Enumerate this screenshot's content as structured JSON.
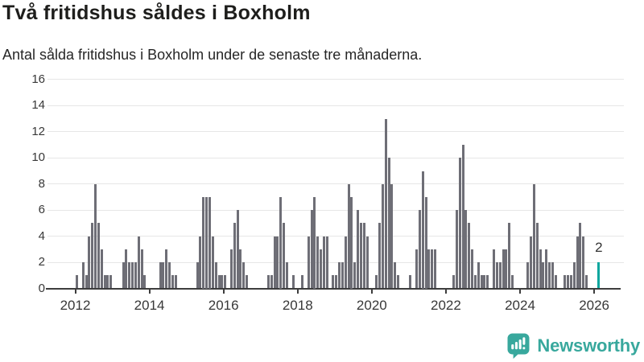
{
  "header": {
    "title": "Två fritidshus såldes i Boxholm",
    "subtitle": "Antal sålda fritidshus i Boxholm under de senaste tre månaderna."
  },
  "footer": {
    "brand": "Newsworthy"
  },
  "chart_data": {
    "type": "bar",
    "title": "Två fritidshus såldes i Boxholm",
    "subtitle": "Antal sålda fritidshus i Boxholm under de senaste tre månaderna.",
    "x_start": "2012-01",
    "frequency": "monthly",
    "values": [
      1,
      0,
      2,
      1,
      4,
      5,
      8,
      5,
      3,
      1,
      1,
      1,
      0,
      0,
      0,
      2,
      3,
      2,
      2,
      2,
      4,
      3,
      1,
      0,
      0,
      0,
      0,
      2,
      2,
      3,
      2,
      1,
      1,
      0,
      0,
      0,
      0,
      0,
      0,
      2,
      4,
      7,
      7,
      7,
      4,
      2,
      1,
      1,
      1,
      0,
      3,
      5,
      6,
      3,
      2,
      1,
      0,
      0,
      0,
      0,
      0,
      0,
      1,
      1,
      4,
      4,
      7,
      5,
      2,
      0,
      1,
      0,
      0,
      1,
      0,
      4,
      6,
      7,
      4,
      3,
      4,
      4,
      0,
      1,
      1,
      2,
      2,
      4,
      8,
      7,
      2,
      6,
      5,
      5,
      4,
      0,
      0,
      1,
      5,
      8,
      13,
      10,
      8,
      2,
      1,
      0,
      0,
      0,
      1,
      0,
      3,
      6,
      9,
      7,
      3,
      3,
      3,
      0,
      0,
      0,
      0,
      0,
      1,
      6,
      10,
      11,
      6,
      5,
      3,
      1,
      2,
      1,
      1,
      1,
      0,
      3,
      2,
      2,
      3,
      3,
      5,
      1,
      0,
      0,
      0,
      0,
      2,
      4,
      8,
      5,
      3,
      2,
      3,
      2,
      2,
      1,
      0,
      0,
      1,
      1,
      1,
      2,
      4,
      5,
      4,
      1,
      0,
      0,
      0,
      2
    ],
    "highlight": {
      "index": 169,
      "value": 2,
      "label": "2"
    },
    "xticks": [
      "2012",
      "2014",
      "2016",
      "2018",
      "2020",
      "2022",
      "2024",
      "2026"
    ],
    "yticks": [
      0,
      2,
      4,
      6,
      8,
      10,
      12,
      14,
      16
    ],
    "ylim": [
      0,
      16
    ],
    "grid": true,
    "legend": null,
    "colors": {
      "bar": "#6e6e76",
      "highlight": "#0ba69e",
      "axis": "#3d3d3d",
      "gridline": "#e6e6e6",
      "tick_label": "#383838",
      "value_label": "#333333",
      "logo": "#38a89d"
    }
  }
}
